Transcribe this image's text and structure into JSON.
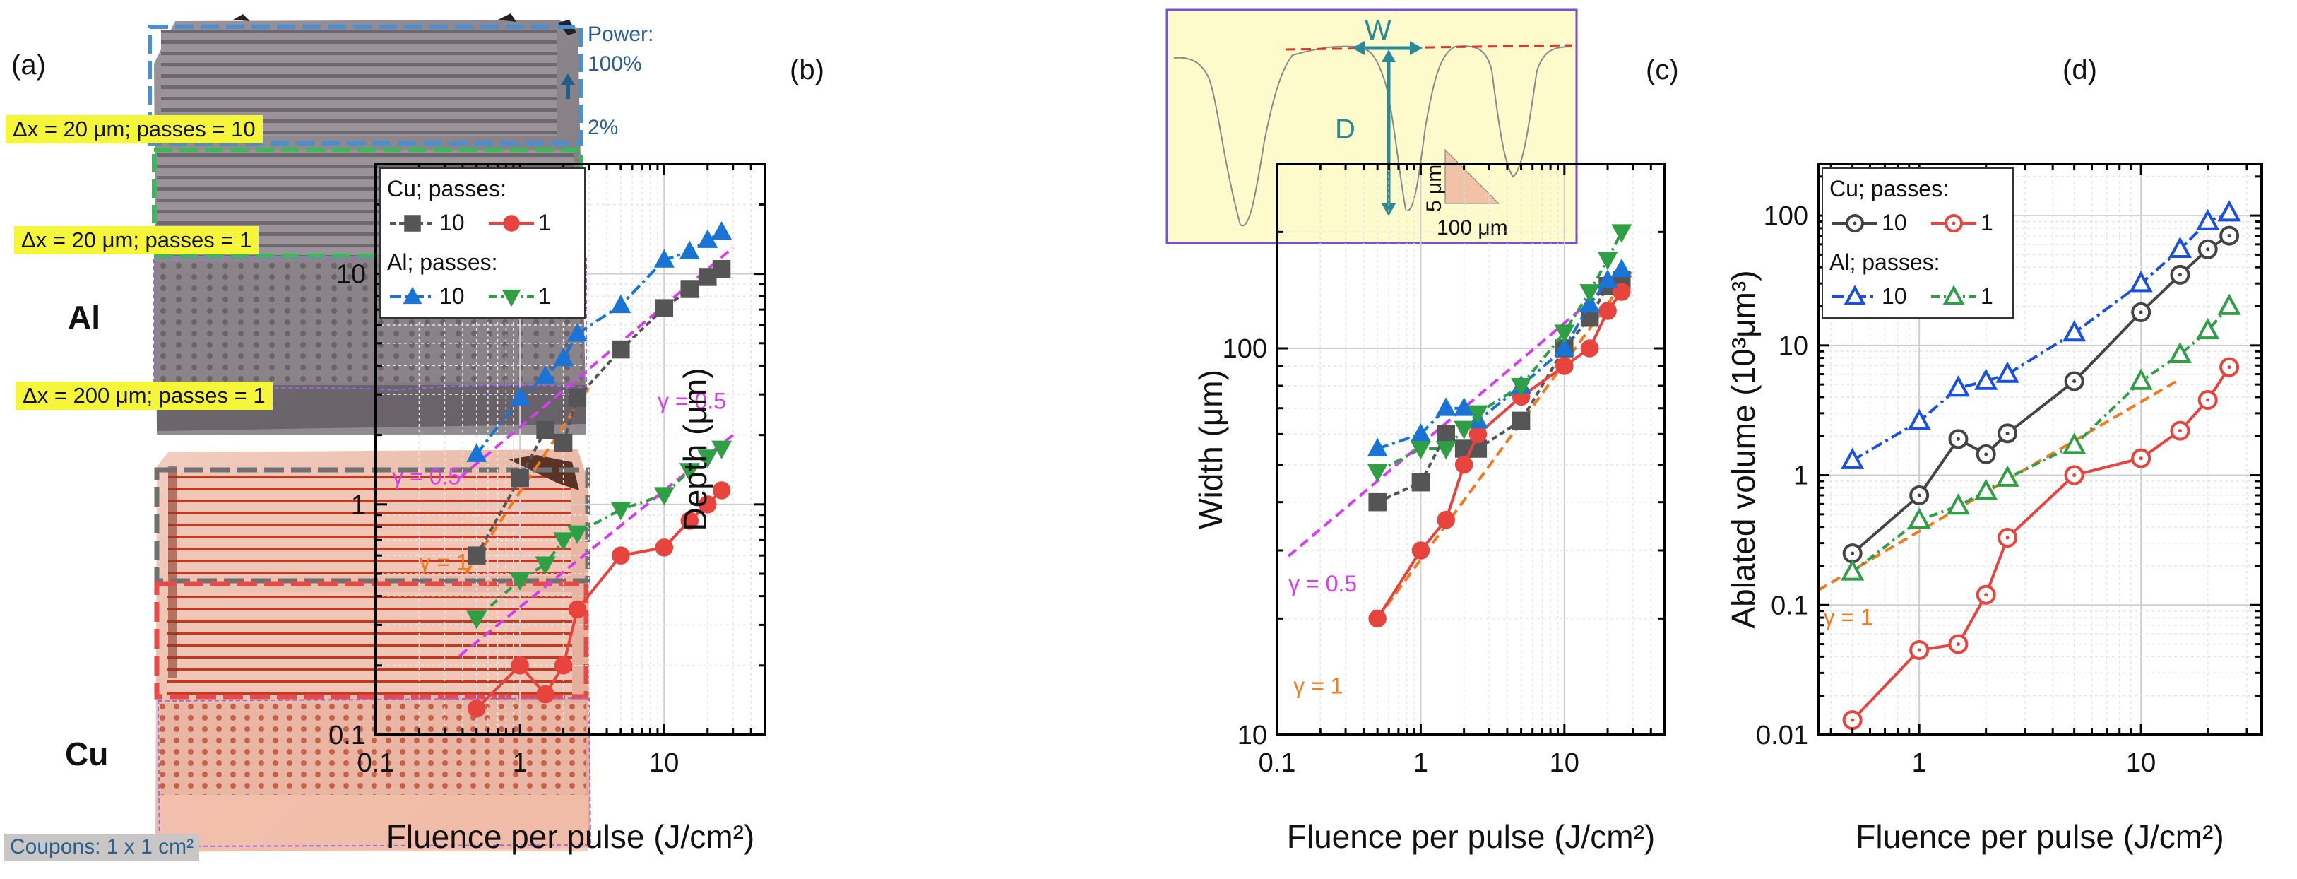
{
  "panel_a": {
    "label": "(a)",
    "material_top": "Al",
    "material_bottom": "Cu",
    "labels": {
      "power_top": "Power:",
      "power_value": "100%",
      "power_low": "2%",
      "row1": "Δx = 20 μm; passes = 10",
      "row2": "Δx = 20 μm; passes = 1",
      "row3": "Δx = 200 μm; passes = 1",
      "coupons": "Coupons: 1 x 1 cm²"
    },
    "colors": {
      "al_surface": "#8f8a90",
      "cu_surface": "#e8b3a2",
      "frame_blue": "#4d8ed0",
      "frame_green": "#3ab85a",
      "frame_gray": "#707070",
      "frame_red": "#e84a4a",
      "frame_purple": "#9966ee",
      "highlight": "#f5f63a"
    }
  },
  "inset": {
    "width_label": "W",
    "depth_label": "D",
    "scale_vertical": "5 μm",
    "scale_horizontal": "100 μm",
    "colors": {
      "background": "#fdfbcc",
      "border": "#7b4fd2",
      "arrow": "#2b8a98",
      "surface_line": "#e0332a",
      "scale_fill": "#f2c2a6"
    }
  },
  "chart_data": [
    {
      "id": "b",
      "panel_label": "(b)",
      "type": "scatter",
      "xscale": "log",
      "yscale": "log",
      "xlim": [
        0.1,
        50
      ],
      "ylim": [
        0.1,
        30
      ],
      "xticks": [
        0.1,
        1,
        10
      ],
      "xticklabels": [
        "0.1",
        "1",
        "10"
      ],
      "yticks": [
        0.1,
        1,
        10
      ],
      "yticklabels": [
        "0.1",
        "1",
        "10"
      ],
      "xlabel": "Fluence per pulse (J/cm²)",
      "ylabel": "Depth (μm)",
      "grid": true,
      "legend": {
        "position": "top-left",
        "group1": "Cu; passes:",
        "group2": "Al; passes:",
        "entries": [
          {
            "series": "Cu 10",
            "text": "10"
          },
          {
            "series": "Cu 1",
            "text": "1"
          },
          {
            "series": "Al 10",
            "text": "10"
          },
          {
            "series": "Al 1",
            "text": "1"
          }
        ]
      },
      "series": [
        {
          "name": "Cu 10",
          "marker": "square",
          "filled": true,
          "color": "#555555",
          "dash": "8,5",
          "x": [
            0.5,
            1.0,
            1.5,
            2.0,
            2.5,
            5,
            10,
            15,
            20,
            25
          ],
          "y": [
            0.6,
            1.3,
            2.1,
            1.85,
            2.9,
            4.7,
            7.1,
            8.6,
            9.7,
            10.5
          ]
        },
        {
          "name": "Cu 1",
          "marker": "circle",
          "filled": true,
          "color": "#e8443e",
          "dash": "",
          "x": [
            0.5,
            1.0,
            1.5,
            2.0,
            2.5,
            5,
            10,
            15,
            20,
            25
          ],
          "y": [
            0.13,
            0.2,
            0.15,
            0.2,
            0.35,
            0.6,
            0.65,
            0.85,
            1.0,
            1.15
          ]
        },
        {
          "name": "Al 10",
          "marker": "triangle-up",
          "filled": true,
          "color": "#1a74d6",
          "dash": "16,6,4,6",
          "x": [
            0.5,
            1.0,
            1.5,
            2.0,
            2.5,
            5,
            10,
            15,
            20,
            25
          ],
          "y": [
            1.65,
            2.9,
            3.6,
            4.3,
            5.5,
            7.3,
            11.5,
            12.5,
            14.0,
            15.2
          ]
        },
        {
          "name": "Al 1",
          "marker": "triangle-down",
          "filled": true,
          "color": "#2f9e44",
          "dash": "12,6,3,6",
          "x": [
            0.5,
            1.0,
            1.5,
            2.0,
            2.5,
            5,
            10,
            15,
            20,
            25
          ],
          "y": [
            0.32,
            0.47,
            0.55,
            0.7,
            0.75,
            0.95,
            1.1,
            1.4,
            1.6,
            1.75
          ]
        }
      ],
      "fits": [
        {
          "label": "γ = 0.5",
          "color": "#d63cf0",
          "x": [
            0.38,
            30
          ],
          "y": [
            1.3,
            13
          ]
        },
        {
          "label": "γ = 0.5",
          "color": "#d63cf0",
          "x": [
            0.38,
            30
          ],
          "y": [
            0.22,
            2.0
          ]
        },
        {
          "label": "γ = 1",
          "color": "#f07a1f",
          "x": [
            0.42,
            3.0
          ],
          "y": [
            0.5,
            3.2
          ]
        }
      ],
      "annotations": [
        {
          "text": "γ = 0.5",
          "x": 0.13,
          "y": 1.22,
          "color": "#d63cf0"
        },
        {
          "text": "γ = 0.5",
          "x": 9.0,
          "y": 2.6,
          "color": "#d63cf0"
        },
        {
          "text": "γ = 1",
          "x": 0.2,
          "y": 0.52,
          "color": "#f07a1f"
        }
      ]
    },
    {
      "id": "c",
      "panel_label": "(c)",
      "type": "scatter",
      "xscale": "log",
      "yscale": "log",
      "xlim": [
        0.1,
        50
      ],
      "ylim": [
        10,
        300
      ],
      "xticks": [
        0.1,
        1,
        10
      ],
      "xticklabels": [
        "0.1",
        "1",
        "10"
      ],
      "yticks": [
        10,
        100
      ],
      "yticklabels": [
        "10",
        "100"
      ],
      "xlabel": "Fluence per pulse (J/cm²)",
      "ylabel": "Width (μm)",
      "grid": true,
      "series": [
        {
          "name": "Cu 10",
          "marker": "square",
          "filled": true,
          "color": "#555555",
          "dash": "8,5",
          "x": [
            0.5,
            1.0,
            1.5,
            2.0,
            2.5,
            5,
            10,
            15,
            20,
            25
          ],
          "y": [
            40,
            45,
            60,
            55,
            55,
            65,
            100,
            120,
            145,
            150
          ]
        },
        {
          "name": "Cu 1",
          "marker": "circle",
          "filled": true,
          "color": "#e8443e",
          "dash": "",
          "x": [
            0.5,
            1.0,
            1.5,
            2.0,
            2.5,
            5,
            10,
            15,
            20,
            25
          ],
          "y": [
            20,
            30,
            36,
            50,
            60,
            75,
            90,
            100,
            125,
            140
          ]
        },
        {
          "name": "Al 10",
          "marker": "triangle-up",
          "filled": true,
          "color": "#1a74d6",
          "dash": "16,6,4,6",
          "x": [
            0.5,
            1.0,
            1.5,
            2.0,
            2.5,
            5,
            10,
            15,
            20,
            25
          ],
          "y": [
            55,
            60,
            70,
            70,
            65,
            80,
            100,
            130,
            150,
            160
          ]
        },
        {
          "name": "Al 1",
          "marker": "triangle-down",
          "filled": true,
          "color": "#2f9e44",
          "dash": "12,6,3,6",
          "x": [
            0.5,
            1.0,
            1.5,
            2.0,
            2.5,
            5,
            10,
            15,
            20,
            25
          ],
          "y": [
            48,
            55,
            55,
            62,
            68,
            80,
            110,
            140,
            170,
            200
          ]
        }
      ],
      "fits": [
        {
          "label": "γ = 0.5",
          "color": "#d63cf0",
          "x": [
            0.12,
            25
          ],
          "y": [
            29,
            155
          ]
        },
        {
          "label": "γ = 1",
          "color": "#f07a1f",
          "x": [
            0.5,
            30
          ],
          "y": [
            20,
            160
          ]
        }
      ],
      "annotations": [
        {
          "text": "γ = 0.5",
          "x": 0.12,
          "y": 23.5,
          "color": "#d63cf0"
        },
        {
          "text": "γ = 1",
          "x": 0.13,
          "y": 12.8,
          "color": "#f07a1f"
        }
      ]
    },
    {
      "id": "d",
      "panel_label": "(d)",
      "type": "scatter",
      "xscale": "log",
      "yscale": "log",
      "xlim": [
        0.35,
        35
      ],
      "ylim": [
        0.01,
        250
      ],
      "xticks": [
        1,
        10
      ],
      "xticklabels": [
        "1",
        "10"
      ],
      "yticks": [
        0.01,
        0.1,
        1,
        10,
        100
      ],
      "yticklabels": [
        "0.01",
        "0.1",
        "1",
        "10",
        "100"
      ],
      "xlabel": "Fluence per pulse (J/cm²)",
      "ylabel": "Ablated volume (10³μm³)",
      "grid": true,
      "legend": {
        "position": "top-left",
        "group1": "Cu; passes:",
        "group2": "Al; passes:",
        "entries": [
          {
            "series": "Cu 10",
            "text": "10"
          },
          {
            "series": "Cu 1",
            "text": "1"
          },
          {
            "series": "Al 10",
            "text": "10"
          },
          {
            "series": "Al 1",
            "text": "1"
          }
        ]
      },
      "series": [
        {
          "name": "Cu 10",
          "marker": "circle",
          "filled": false,
          "color": "#444444",
          "dash": "",
          "x": [
            0.5,
            1.0,
            1.5,
            2.0,
            2.5,
            5,
            10,
            15,
            20,
            25
          ],
          "y": [
            0.25,
            0.7,
            1.9,
            1.45,
            2.1,
            5.3,
            18,
            35,
            55,
            70
          ]
        },
        {
          "name": "Cu 1",
          "marker": "circle",
          "filled": false,
          "color": "#e8443e",
          "dash": "",
          "x": [
            0.5,
            1.0,
            1.5,
            2.0,
            2.5,
            5,
            10,
            15,
            20,
            25
          ],
          "y": [
            0.013,
            0.045,
            0.05,
            0.12,
            0.33,
            1.0,
            1.35,
            2.2,
            3.8,
            6.8
          ]
        },
        {
          "name": "Al 10",
          "marker": "triangle-up",
          "filled": false,
          "color": "#1a4fe0",
          "dash": "16,6,4,6",
          "x": [
            0.5,
            1.0,
            1.5,
            2.0,
            2.5,
            5,
            10,
            15,
            20,
            25
          ],
          "y": [
            1.3,
            2.6,
            4.7,
            5.3,
            6.0,
            12.5,
            30,
            55,
            90,
            105
          ]
        },
        {
          "name": "Al 1",
          "marker": "triangle-up",
          "filled": false,
          "color": "#2f9e44",
          "dash": "12,6,3,6",
          "x": [
            0.5,
            1.0,
            1.5,
            2.0,
            2.5,
            5,
            10,
            15,
            20,
            25
          ],
          "y": [
            0.18,
            0.45,
            0.58,
            0.75,
            0.95,
            1.7,
            5.3,
            8.5,
            13,
            20
          ]
        }
      ],
      "fits": [
        {
          "label": "γ = 1",
          "color": "#f07a1f",
          "x": [
            0.35,
            15
          ],
          "y": [
            0.13,
            5.5
          ]
        }
      ],
      "annotations": [
        {
          "text": "γ = 1",
          "x": 0.37,
          "y": 0.07,
          "color": "#f07a1f"
        }
      ]
    }
  ]
}
